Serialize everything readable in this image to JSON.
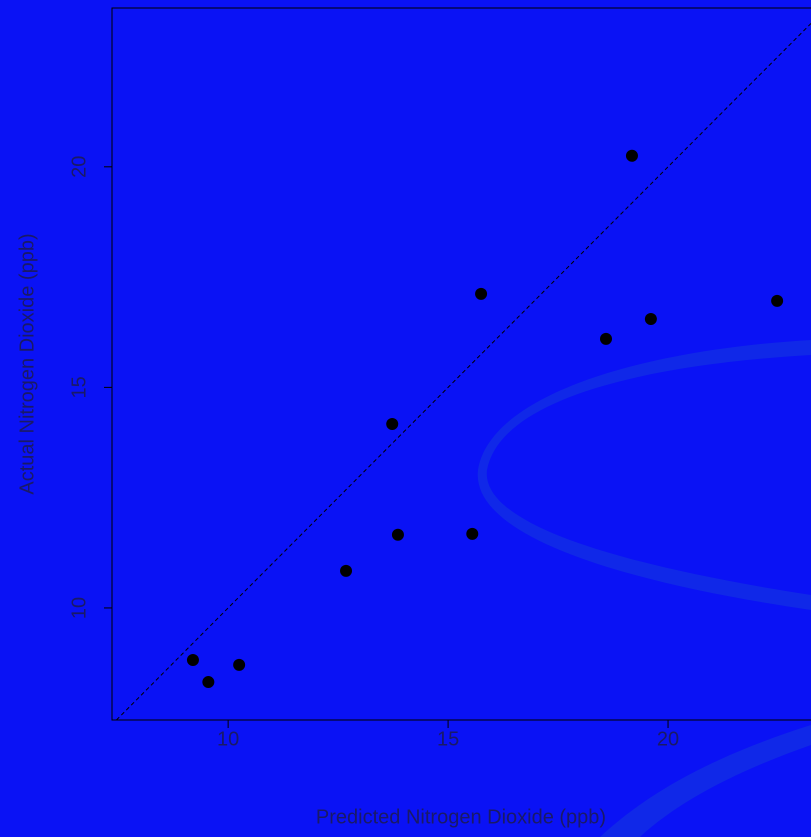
{
  "chart_data": {
    "type": "scatter",
    "x_label": "Predicted Nitrogen Dioxide (ppb)",
    "y_label": "Actual Nitrogen Dioxide (ppb)",
    "x": [
      9.2,
      9.55,
      10.25,
      12.68,
      13.73,
      13.86,
      15.55,
      15.75,
      18.59,
      19.18,
      19.61,
      22.48
    ],
    "series": [
      {
        "color": "#000000",
        "values": [
          8.82,
          8.32,
          8.71,
          10.84,
          14.17,
          11.66,
          11.68,
          17.12,
          16.1,
          20.25,
          16.55,
          16.96
        ]
      }
    ],
    "xlim": [
      7.36,
      23.25
    ],
    "ylim": [
      7.46,
      23.6
    ],
    "xticks": [
      10,
      15,
      20
    ],
    "yticks": [
      10,
      15,
      20
    ]
  }
}
